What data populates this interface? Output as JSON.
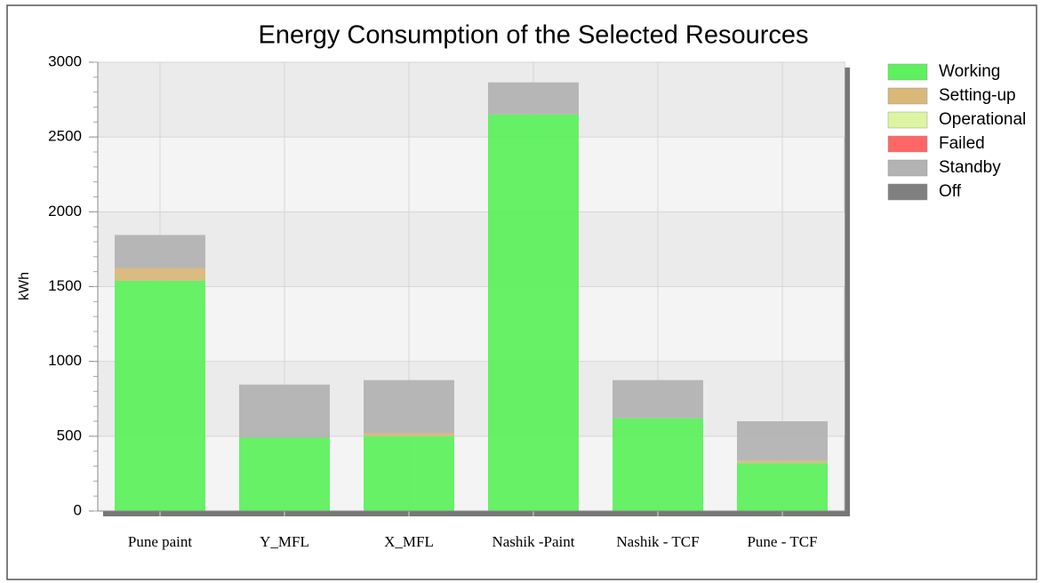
{
  "chart_data": {
    "type": "stacked_bar",
    "title": "Energy Consumption of the Selected Resources",
    "y_label": "kWh",
    "categories": [
      "Pune paint",
      "Y_MFL",
      "X_MFL",
      "Nashik -Paint",
      "Nashik - TCF",
      "Pune - TCF"
    ],
    "series": [
      {
        "name": "Working",
        "color": "#5ef05e",
        "values": [
          1540,
          490,
          500,
          2650,
          620,
          320
        ]
      },
      {
        "name": "Setting-up",
        "color": "#d9b87a",
        "values": [
          85,
          0,
          20,
          0,
          0,
          15
        ]
      },
      {
        "name": "Operational",
        "color": "#ddf5a0",
        "values": [
          0,
          0,
          0,
          0,
          0,
          0
        ]
      },
      {
        "name": "Failed",
        "color": "#ff6666",
        "values": [
          0,
          0,
          0,
          0,
          0,
          0
        ]
      },
      {
        "name": "Standby",
        "color": "#b3b3b3",
        "values": [
          220,
          355,
          355,
          215,
          255,
          265
        ]
      },
      {
        "name": "Off",
        "color": "#808080",
        "values": [
          0,
          0,
          0,
          0,
          0,
          0
        ]
      }
    ],
    "ylim": [
      0,
      3000
    ],
    "yticks": [
      0,
      500,
      1000,
      1500,
      2000,
      2500,
      3000
    ],
    "grid": true,
    "legend": "right"
  }
}
